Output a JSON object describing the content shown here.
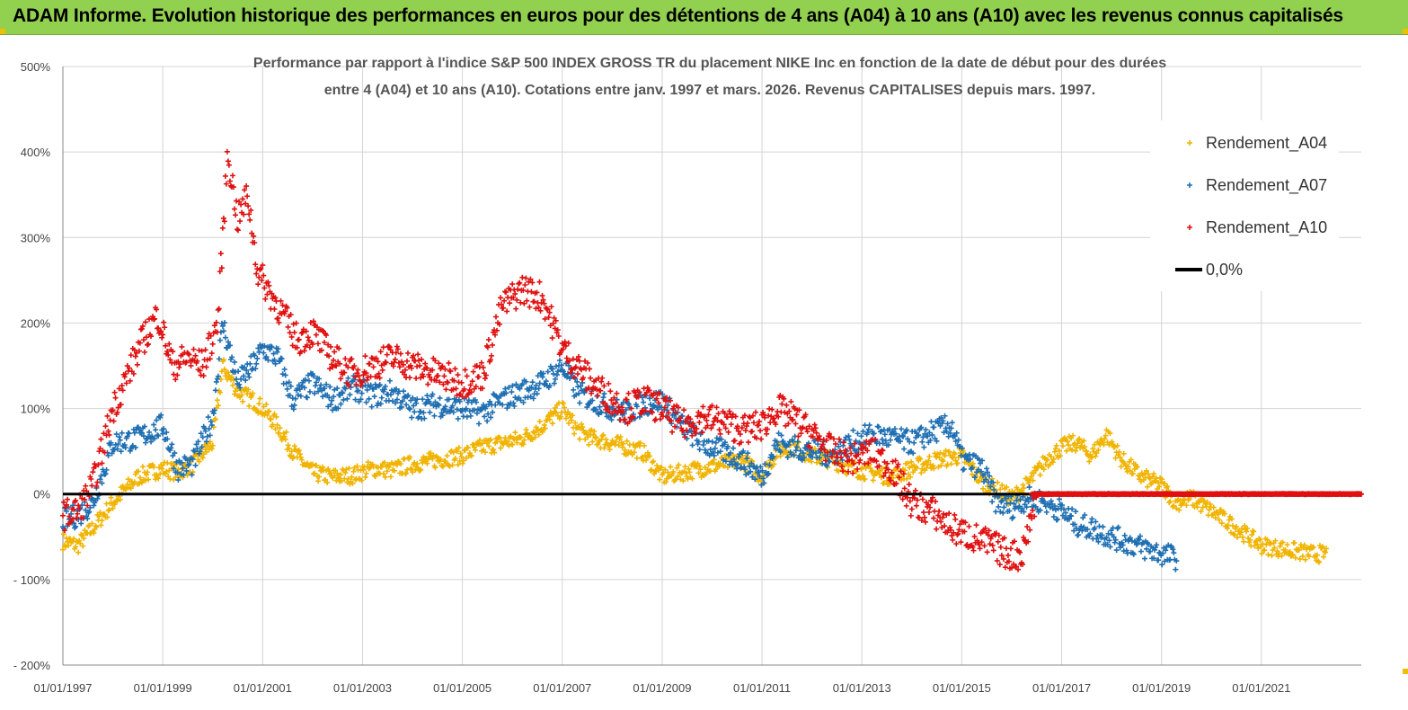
{
  "banner": {
    "title": "ADAM Informe. Evolution historique des performances en euros pour des détentions de 4 ans (A04) à 10 ans (A10) avec les revenus connus capitalisés"
  },
  "colors": {
    "banner": "#92d050",
    "a04": "#f0b400",
    "a07": "#1f6fb2",
    "a10": "#e01010",
    "zero": "#000000"
  },
  "chart_data": {
    "type": "scatter",
    "title_line1": "Performance par rapport à l'indice S&P 500 INDEX GROSS TR  du placement NIKE Inc en fonction de la date de début pour des durées",
    "title_line2": "entre 4 (A04) et 10 ans (A10). Cotations entre janv. 1997 et mars. 2026. Revenus CAPITALISES depuis mars. 1997.",
    "xlabel": "",
    "ylabel": "",
    "x_range": [
      "1997-01-01",
      "2023-01-01"
    ],
    "ylim": [
      -200,
      500
    ],
    "y_ticks": [
      500,
      400,
      300,
      200,
      100,
      0,
      -100,
      -200
    ],
    "y_tick_labels": [
      "500%",
      "400%",
      "300%",
      "200%",
      "100%",
      "0%",
      "- 100%",
      "- 200%"
    ],
    "x_tick_labels": [
      "01/01/1997",
      "01/01/1999",
      "01/01/2001",
      "01/01/2003",
      "01/01/2005",
      "01/01/2007",
      "01/01/2009",
      "01/01/2011",
      "01/01/2013",
      "01/01/2015",
      "01/01/2017",
      "01/01/2019",
      "01/01/2021"
    ],
    "grid": true,
    "legend_position": "top-right",
    "legend": [
      "Rendement_A04",
      "Rendement_A07",
      "Rendement_A10",
      "0,0%"
    ],
    "series": [
      {
        "name": "Rendement_A04",
        "color": "#f0b400",
        "x": [
          1997.0,
          1997.3,
          1997.6,
          1998.0,
          1998.5,
          1999.0,
          1999.3,
          1999.6,
          2000.0,
          2000.2,
          2000.5,
          2000.8,
          2001.0,
          2001.3,
          2001.6,
          2002.0,
          2002.4,
          2002.8,
          2003.2,
          2003.6,
          2004.0,
          2004.5,
          2005.0,
          2005.4,
          2005.8,
          2006.2,
          2006.6,
          2007.0,
          2007.3,
          2007.6,
          2008.0,
          2008.3,
          2008.6,
          2009.0,
          2009.4,
          2009.8,
          2010.2,
          2010.6,
          2011.0,
          2011.3,
          2011.6,
          2012.0,
          2012.4,
          2012.8,
          2013.2,
          2013.6,
          2014.0,
          2014.5,
          2015.0,
          2015.4,
          2015.7,
          2016.0,
          2016.3,
          2016.7,
          2017.0,
          2017.3,
          2017.6,
          2017.9,
          2018.2,
          2018.6,
          2019.0,
          2019.3,
          2019.6,
          2020.0,
          2020.5,
          2021.0,
          2021.5,
          2022.0,
          2022.3
        ],
        "y": [
          -55,
          -60,
          -40,
          -10,
          20,
          30,
          25,
          35,
          60,
          150,
          120,
          110,
          100,
          80,
          50,
          25,
          20,
          22,
          30,
          28,
          35,
          40,
          45,
          55,
          60,
          65,
          80,
          100,
          75,
          65,
          60,
          55,
          50,
          20,
          25,
          30,
          35,
          40,
          20,
          50,
          55,
          45,
          40,
          30,
          25,
          20,
          30,
          40,
          45,
          15,
          5,
          -5,
          10,
          40,
          55,
          60,
          45,
          70,
          40,
          20,
          10,
          -10,
          -5,
          -20,
          -40,
          -60,
          -65,
          -70,
          -70
        ]
      },
      {
        "name": "Rendement_A07",
        "color": "#1f6fb2",
        "x": [
          1997.0,
          1997.3,
          1997.6,
          1998.0,
          1998.5,
          1999.0,
          1999.3,
          1999.6,
          2000.0,
          2000.2,
          2000.5,
          2000.8,
          2001.0,
          2001.3,
          2001.6,
          2002.0,
          2002.4,
          2002.8,
          2003.2,
          2003.6,
          2004.0,
          2004.5,
          2005.0,
          2005.4,
          2005.8,
          2006.2,
          2006.6,
          2007.0,
          2007.3,
          2007.6,
          2008.0,
          2008.3,
          2008.6,
          2009.0,
          2009.4,
          2009.8,
          2010.2,
          2010.6,
          2011.0,
          2011.3,
          2011.6,
          2012.0,
          2012.4,
          2012.8,
          2013.2,
          2013.6,
          2014.0,
          2014.5,
          2014.8,
          2015.0,
          2015.4,
          2015.7,
          2016.0,
          2016.3,
          2016.7,
          2017.0,
          2017.3,
          2017.6,
          2018.0,
          2018.5,
          2019.0,
          2019.3
        ],
        "y": [
          -30,
          -25,
          -10,
          60,
          65,
          80,
          30,
          35,
          90,
          200,
          130,
          150,
          170,
          160,
          110,
          130,
          110,
          125,
          115,
          120,
          100,
          105,
          100,
          95,
          110,
          120,
          130,
          150,
          120,
          110,
          100,
          95,
          105,
          110,
          80,
          60,
          50,
          40,
          20,
          60,
          55,
          50,
          45,
          60,
          70,
          65,
          60,
          75,
          80,
          40,
          30,
          -10,
          -15,
          -5,
          -10,
          -20,
          -35,
          -40,
          -50,
          -60,
          -70,
          -75
        ]
      },
      {
        "name": "Rendement_A10",
        "color": "#e01010",
        "x": [
          1997.0,
          1997.3,
          1997.6,
          1998.0,
          1998.3,
          1998.6,
          1998.9,
          1999.2,
          1999.5,
          1999.8,
          2000.1,
          2000.3,
          2000.5,
          2000.7,
          2000.9,
          2001.1,
          2001.4,
          2001.7,
          2002.0,
          2002.4,
          2002.8,
          2003.2,
          2003.6,
          2004.0,
          2004.5,
          2005.0,
          2005.4,
          2005.8,
          2006.2,
          2006.6,
          2007.0,
          2007.3,
          2007.6,
          2008.0,
          2008.3,
          2008.6,
          2009.0,
          2009.4,
          2009.8,
          2010.2,
          2010.6,
          2011.0,
          2011.3,
          2011.6,
          2012.0,
          2012.4,
          2012.8,
          2013.2,
          2013.6,
          2014.0,
          2014.4,
          2014.8,
          2015.2,
          2015.6,
          2015.9,
          2016.2,
          2016.5,
          2017.0,
          2018.0,
          2019.0,
          2020.0,
          2021.0,
          2022.0,
          2023.0
        ],
        "y": [
          -25,
          -20,
          10,
          100,
          140,
          180,
          210,
          150,
          160,
          150,
          200,
          400,
          320,
          350,
          260,
          240,
          210,
          180,
          190,
          160,
          140,
          150,
          160,
          150,
          140,
          130,
          140,
          220,
          240,
          230,
          170,
          150,
          130,
          110,
          100,
          110,
          100,
          80,
          90,
          85,
          75,
          80,
          100,
          90,
          70,
          50,
          40,
          50,
          30,
          -10,
          -20,
          -40,
          -50,
          -60,
          -70,
          -72,
          0,
          0,
          0,
          0,
          0,
          0,
          0,
          0
        ]
      }
    ]
  }
}
